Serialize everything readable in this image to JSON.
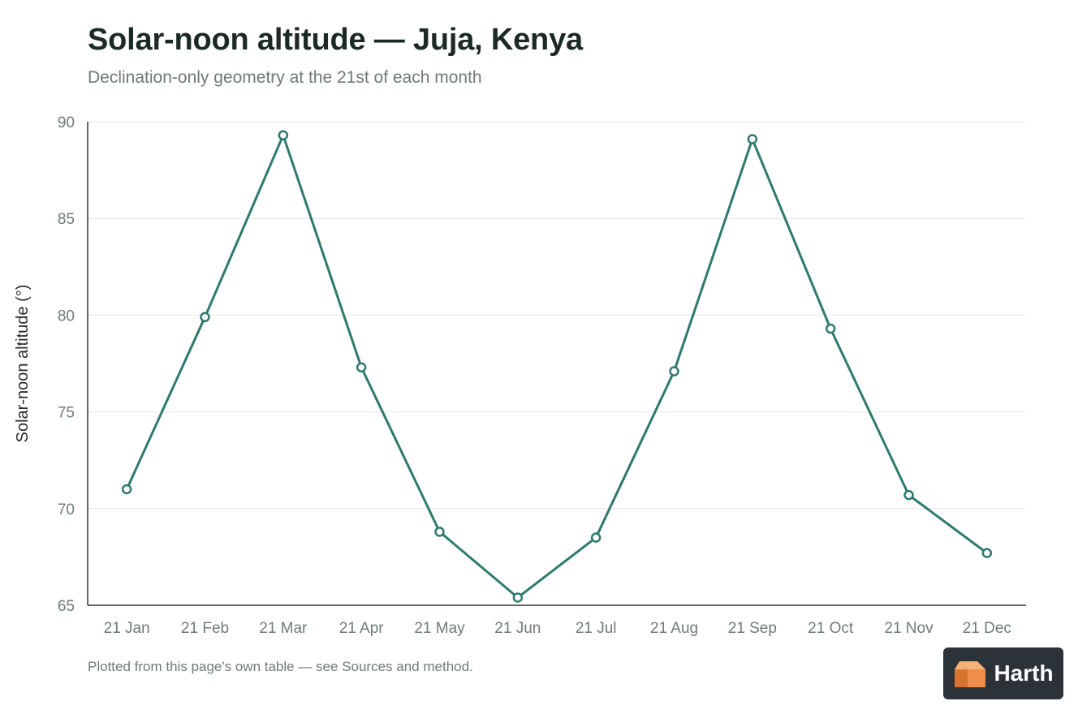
{
  "header": {
    "title": "Solar-noon altitude — Juja, Kenya",
    "subtitle": "Declination-only geometry at the 21st of each month"
  },
  "footer": {
    "note": "Plotted from this page's own table — see Sources and method.",
    "brand": "Harth"
  },
  "colors": {
    "line": "#2e7a6e",
    "marker_fill": "#ffffff",
    "grid": "#e6e6e6",
    "axis": "#333333",
    "tick_text": "#6f7b78",
    "label_text": "#2a2a2a",
    "logo_orange_light": "#f6b27a",
    "logo_orange": "#ef8d4b",
    "logo_orange_dark": "#d8732f"
  },
  "chart_data": {
    "type": "line",
    "title": "Solar-noon altitude — Juja, Kenya",
    "subtitle": "Declination-only geometry at the 21st of each month",
    "xlabel": "",
    "ylabel": "Solar-noon altitude (°)",
    "categories": [
      "21 Jan",
      "21 Feb",
      "21 Mar",
      "21 Apr",
      "21 May",
      "21 Jun",
      "21 Jul",
      "21 Aug",
      "21 Sep",
      "21 Oct",
      "21 Nov",
      "21 Dec"
    ],
    "series": [
      {
        "values": [
          71.0,
          79.9,
          89.3,
          77.3,
          68.8,
          65.4,
          68.5,
          77.1,
          89.1,
          79.3,
          70.7,
          67.7
        ]
      }
    ],
    "ylim": [
      65,
      90
    ],
    "yticks": [
      65,
      70,
      75,
      80,
      85,
      90
    ],
    "grid": true,
    "legend": "none"
  }
}
